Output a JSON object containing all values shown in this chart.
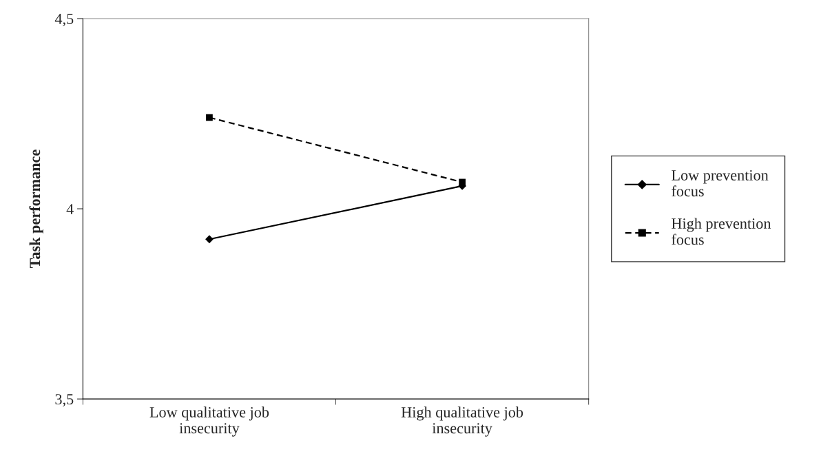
{
  "chart_data": {
    "type": "line",
    "ylabel": "Task performance",
    "categories": [
      "Low qualitative job insecurity",
      "High qualitative job insecurity"
    ],
    "series": [
      {
        "name": "Low prevention focus",
        "color": "#000000",
        "values": [
          3.92,
          4.06
        ],
        "marker": "diamond",
        "line_style": "solid"
      },
      {
        "name": "High prevention focus",
        "color": "#000000",
        "values": [
          4.24,
          4.07
        ],
        "marker": "square",
        "line_style": "dashed"
      }
    ],
    "ylim": [
      3.5,
      4.5
    ],
    "yticks": [
      {
        "value": 3.5,
        "label": "3,5"
      },
      {
        "value": 4,
        "label": "4"
      },
      {
        "value": 4.5,
        "label": "4,5"
      }
    ],
    "grid": false,
    "legend": "right"
  }
}
